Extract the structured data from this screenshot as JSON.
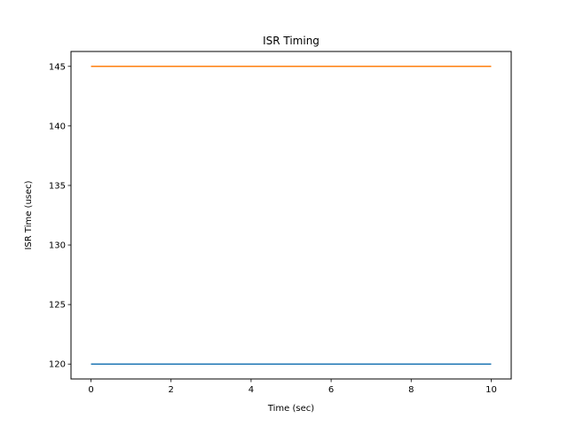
{
  "chart_data": {
    "type": "line",
    "title": "ISR Timing",
    "xlabel": "Time (sec)",
    "ylabel": "ISR Time (usec)",
    "xlim": [
      -0.5,
      10.5
    ],
    "ylim": [
      118.75,
      146.25
    ],
    "xticks": [
      0,
      2,
      4,
      6,
      8,
      10
    ],
    "yticks": [
      120,
      125,
      130,
      135,
      140,
      145
    ],
    "grid": false,
    "series": [
      {
        "color": "#1f77b4",
        "x": [
          0,
          10
        ],
        "y": [
          120,
          120
        ]
      },
      {
        "color": "#ff7f0e",
        "x": [
          0,
          10
        ],
        "y": [
          145,
          145
        ]
      }
    ]
  }
}
